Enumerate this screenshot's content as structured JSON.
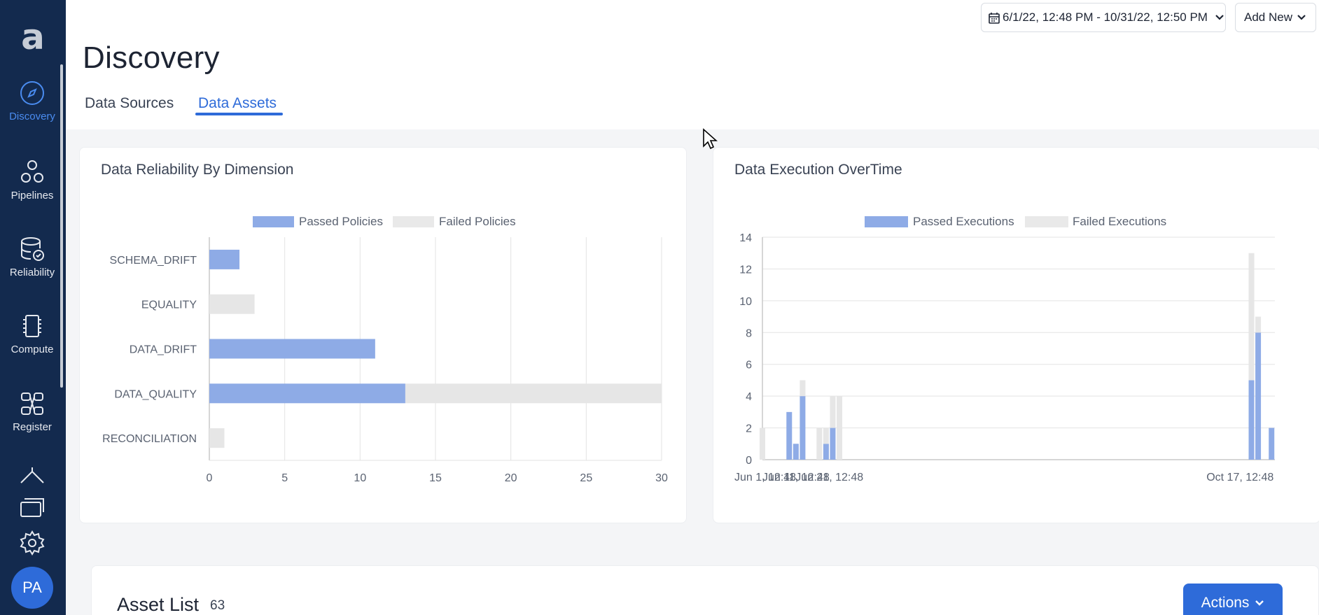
{
  "app": {
    "logo_text": "a"
  },
  "sidebar": {
    "items": [
      {
        "label": "Discovery",
        "icon": "compass-icon",
        "active": true
      },
      {
        "label": "Pipelines",
        "icon": "pipelines-icon",
        "active": false
      },
      {
        "label": "Reliability",
        "icon": "database-check-icon",
        "active": false
      },
      {
        "label": "Compute",
        "icon": "chip-icon",
        "active": false
      },
      {
        "label": "Register",
        "icon": "register-icon",
        "active": false
      }
    ],
    "bottom_icons": [
      "upload-cloud-icon",
      "cards-icon",
      "gear-icon"
    ],
    "avatar_initials": "PA"
  },
  "header": {
    "title": "Discovery",
    "tabs": [
      {
        "label": "Data Sources",
        "active": false
      },
      {
        "label": "Data Assets",
        "active": true
      }
    ],
    "date_range": "6/1/22, 12:48 PM - 10/31/22, 12:50 PM",
    "add_new_label": "Add New"
  },
  "colors": {
    "passed": "#8eabe6",
    "failed": "#e6e6e6",
    "accent": "#2e6bd9",
    "sidebar": "#132a4e"
  },
  "cards": {
    "reliability_title": "Data Reliability By Dimension",
    "execution_title": "Data Execution OverTime"
  },
  "chart_data": [
    {
      "type": "bar",
      "orientation": "horizontal",
      "stacked": true,
      "title": "Data Reliability By Dimension",
      "categories": [
        "SCHEMA_DRIFT",
        "EQUALITY",
        "DATA_DRIFT",
        "DATA_QUALITY",
        "RECONCILIATION"
      ],
      "series": [
        {
          "name": "Passed Policies",
          "values": [
            2,
            0,
            11,
            13,
            0
          ]
        },
        {
          "name": "Failed Policies",
          "values": [
            0,
            3,
            0,
            17,
            1
          ]
        }
      ],
      "xlim": [
        0,
        30
      ],
      "xticks": [
        0,
        5,
        10,
        15,
        20,
        25,
        30
      ],
      "grid": true,
      "legend": "top-center"
    },
    {
      "type": "bar",
      "stacked": true,
      "title": "Data Execution OverTime",
      "x_tick_labels": [
        "Jun 1, 12:48",
        "Jun 11, 12:48",
        "Jun 21, 12:48",
        "Oct 17, 12:48"
      ],
      "x_tick_days": [
        0,
        10,
        20,
        138
      ],
      "x_range_days": [
        0,
        153
      ],
      "points": [
        {
          "day": 0,
          "passed": 0,
          "failed": 2
        },
        {
          "day": 8,
          "passed": 3,
          "failed": 0
        },
        {
          "day": 10,
          "passed": 1,
          "failed": 0
        },
        {
          "day": 12,
          "passed": 4,
          "failed": 1
        },
        {
          "day": 17,
          "passed": 0,
          "failed": 2
        },
        {
          "day": 19,
          "passed": 1,
          "failed": 1
        },
        {
          "day": 21,
          "passed": 2,
          "failed": 2
        },
        {
          "day": 23,
          "passed": 0,
          "failed": 4
        },
        {
          "day": 146,
          "passed": 5,
          "failed": 8
        },
        {
          "day": 148,
          "passed": 8,
          "failed": 1
        },
        {
          "day": 152,
          "passed": 2,
          "failed": 0
        }
      ],
      "series_names": [
        "Passed Executions",
        "Failed Executions"
      ],
      "ylim": [
        0,
        14
      ],
      "yticks": [
        0,
        2,
        4,
        6,
        8,
        10,
        12,
        14
      ],
      "grid": true,
      "legend": "top-center"
    }
  ],
  "asset_list": {
    "title": "Asset List",
    "count": "63",
    "actions_label": "Actions"
  }
}
